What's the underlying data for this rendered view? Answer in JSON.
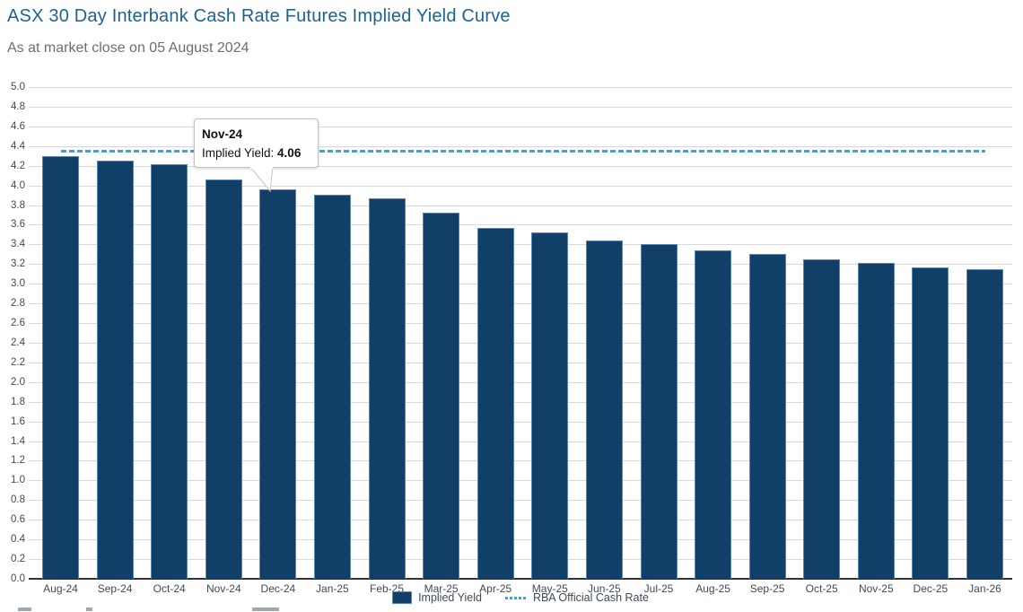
{
  "header": {
    "title": "ASX 30 Day Interbank Cash Rate Futures Implied Yield Curve",
    "subtitle": "As at market close on 05 August 2024"
  },
  "chart_data": {
    "type": "bar",
    "title": "ASX 30 Day Interbank Cash Rate Futures Implied Yield Curve",
    "subtitle": "As at market close on 05 August 2024",
    "categories": [
      "Aug-24",
      "Sep-24",
      "Oct-24",
      "Nov-24",
      "Dec-24",
      "Jan-25",
      "Feb-25",
      "Mar-25",
      "Apr-25",
      "May-25",
      "Jun-25",
      "Jul-25",
      "Aug-25",
      "Sep-25",
      "Oct-25",
      "Nov-25",
      "Dec-25",
      "Jan-26"
    ],
    "series": [
      {
        "name": "Implied Yield",
        "type": "bar",
        "values": [
          4.3,
          4.25,
          4.22,
          4.06,
          3.96,
          3.91,
          3.87,
          3.72,
          3.57,
          3.52,
          3.44,
          3.4,
          3.34,
          3.3,
          3.25,
          3.21,
          3.17,
          3.15
        ]
      },
      {
        "name": "RBA Official Cash Rate",
        "type": "dashed-line",
        "value": 4.35
      }
    ],
    "ylim": [
      0,
      5.0
    ],
    "ytick_step": 0.2,
    "yticks": [
      "5.0",
      "4.8",
      "4.6",
      "4.4",
      "4.2",
      "4.0",
      "3.8",
      "3.6",
      "3.4",
      "3.2",
      "3.0",
      "2.8",
      "2.6",
      "2.4",
      "2.2",
      "2.0",
      "1.8",
      "1.6",
      "1.4",
      "1.2",
      "1.0",
      "0.8",
      "0.6",
      "0.4",
      "0.2",
      "0.0"
    ],
    "grid": true,
    "legend_position": "bottom"
  },
  "tooltip": {
    "category": "Nov-24",
    "label": "Implied Yield: ",
    "value": "4.06"
  },
  "colors": {
    "bar": "#123f68",
    "bar_border": "#5a87ad",
    "rba_line": "#29abe2",
    "title": "#1d6390",
    "subtitle": "#6d6e71",
    "axis_text": "#3f4a56",
    "gridline": "#d9d9d9",
    "axis_line": "#333333",
    "tooltip_border": "#c3c3c3"
  }
}
